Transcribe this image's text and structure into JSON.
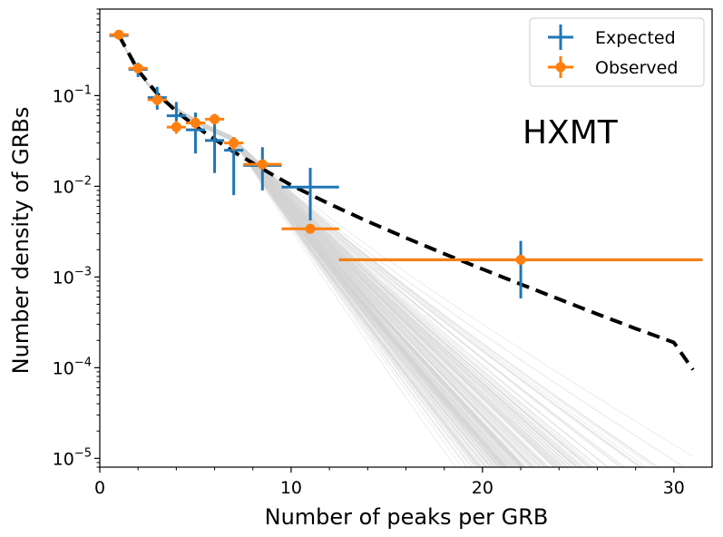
{
  "chart_data": {
    "type": "scatter",
    "xlabel": "Number of peaks per GRB",
    "ylabel": "Number density of GRBs",
    "xlim": [
      0,
      32
    ],
    "ylim": [
      8e-06,
      0.9
    ],
    "yscale": "log",
    "x_ticks": [
      0,
      10,
      20,
      30
    ],
    "x_tick_labels": [
      "0",
      "10",
      "20",
      "30"
    ],
    "y_ticks": [
      {
        "value": 1e-05,
        "base": "10",
        "exp": "−5"
      },
      {
        "value": 0.0001,
        "base": "10",
        "exp": "−4"
      },
      {
        "value": 0.001,
        "base": "10",
        "exp": "−3"
      },
      {
        "value": 0.01,
        "base": "10",
        "exp": "−2"
      },
      {
        "value": 0.1,
        "base": "10",
        "exp": "−1"
      }
    ],
    "annotation": "HXMT",
    "legend": {
      "position": "top-right",
      "entries": [
        "Expected",
        "Observed"
      ]
    },
    "colors": {
      "expected": "#1f77b4",
      "observed": "#ff7f0e",
      "fit": "#000000",
      "samples": "#d3d3d3"
    },
    "fit_line": {
      "name": "best fit",
      "style": "dashed",
      "x": [
        1,
        2,
        3,
        4,
        5,
        6,
        7,
        8,
        9,
        10,
        12,
        14,
        16,
        18,
        20,
        22,
        24,
        26,
        28,
        30,
        31
      ],
      "y": [
        0.46,
        0.19,
        0.105,
        0.067,
        0.046,
        0.033,
        0.024,
        0.018,
        0.0135,
        0.0103,
        0.0064,
        0.0041,
        0.0027,
        0.0018,
        0.00122,
        0.00083,
        0.00057,
        0.00039,
        0.00027,
        0.00019,
        9.5e-05
      ]
    },
    "series": [
      {
        "name": "Expected",
        "points": [
          {
            "x": 1,
            "xerr": 0.5,
            "y": 0.46,
            "ylo": 0.43,
            "yhi": 0.49
          },
          {
            "x": 2,
            "xerr": 0.5,
            "y": 0.195,
            "ylo": 0.16,
            "yhi": 0.23
          },
          {
            "x": 3,
            "xerr": 0.5,
            "y": 0.095,
            "ylo": 0.07,
            "yhi": 0.125
          },
          {
            "x": 4,
            "xerr": 0.5,
            "y": 0.06,
            "ylo": 0.04,
            "yhi": 0.085
          },
          {
            "x": 5,
            "xerr": 0.5,
            "y": 0.042,
            "ylo": 0.023,
            "yhi": 0.065
          },
          {
            "x": 6,
            "xerr": 0.5,
            "y": 0.032,
            "ylo": 0.014,
            "yhi": 0.055
          },
          {
            "x": 7,
            "xerr": 0.5,
            "y": 0.025,
            "ylo": 0.008,
            "yhi": 0.035
          },
          {
            "x": 8.5,
            "xerr": 1.0,
            "y": 0.017,
            "ylo": 0.009,
            "yhi": 0.027
          },
          {
            "x": 11,
            "xerr": 1.5,
            "y": 0.0098,
            "ylo": 0.0042,
            "yhi": 0.016
          },
          {
            "x": 22,
            "xerr": 9.5,
            "y": 0.00155,
            "ylo": 0.00058,
            "yhi": 0.0025
          }
        ]
      },
      {
        "name": "Observed",
        "points": [
          {
            "x": 1,
            "xerr": 0.5,
            "y": 0.47,
            "ylo": 0.44,
            "yhi": 0.5
          },
          {
            "x": 2,
            "xerr": 0.5,
            "y": 0.2,
            "ylo": 0.18,
            "yhi": 0.22
          },
          {
            "x": 3,
            "xerr": 0.5,
            "y": 0.09,
            "ylo": 0.078,
            "yhi": 0.102
          },
          {
            "x": 4,
            "xerr": 0.5,
            "y": 0.045,
            "ylo": 0.038,
            "yhi": 0.053
          },
          {
            "x": 5,
            "xerr": 0.5,
            "y": 0.05,
            "ylo": 0.043,
            "yhi": 0.058
          },
          {
            "x": 6,
            "xerr": 0.5,
            "y": 0.055,
            "ylo": 0.048,
            "yhi": 0.063
          },
          {
            "x": 7,
            "xerr": 0.5,
            "y": 0.03,
            "ylo": 0.025,
            "yhi": 0.035
          },
          {
            "x": 8.5,
            "xerr": 1.0,
            "y": 0.0175,
            "ylo": 0.0155,
            "yhi": 0.0195
          },
          {
            "x": 11,
            "xerr": 1.5,
            "y": 0.0034,
            "ylo": 0.0032,
            "yhi": 0.0036
          },
          {
            "x": 22,
            "xerr": 9.5,
            "y": 0.00155,
            "ylo": 0.00148,
            "yhi": 0.00162
          }
        ]
      }
    ]
  }
}
